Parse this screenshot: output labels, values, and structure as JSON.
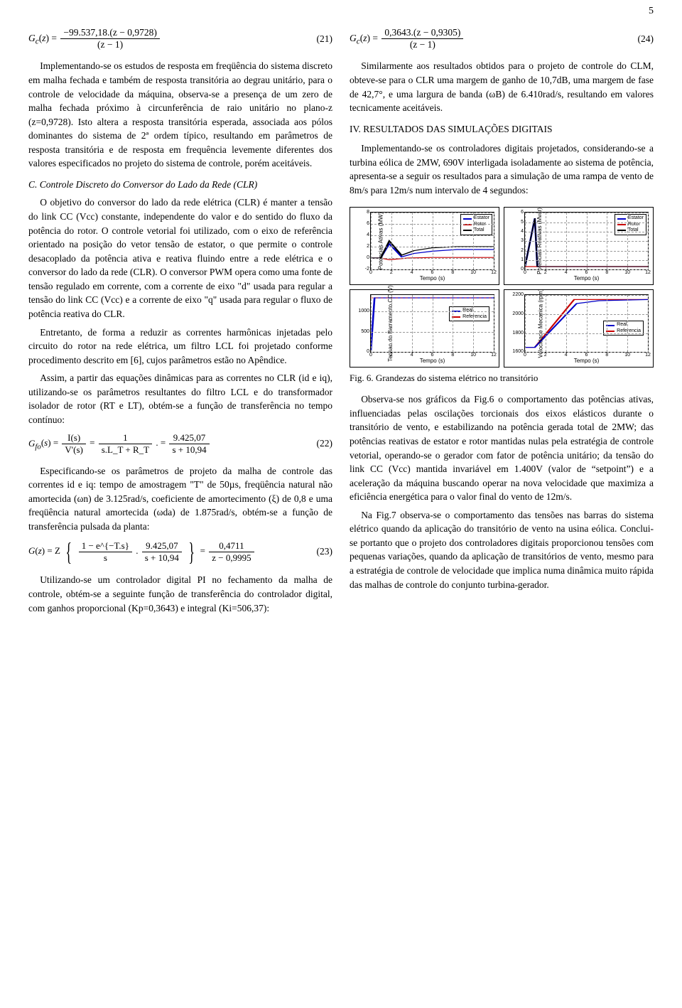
{
  "page_number": "5",
  "left": {
    "eq21": {
      "lhs": "G_c(z) =",
      "num": "−99.537,18.(z − 0,9728)",
      "den": "(z − 1)",
      "num_label": "(21)"
    },
    "p1": "Implementando-se os estudos de resposta em freqüência do sistema discreto em malha fechada e também de resposta transitória ao degrau unitário, para o controle de velocidade da máquina, observa-se a presença de um zero de malha fechada próximo à circunferência de raio unitário no plano-z (z=0,9728). Isto altera a resposta transitória esperada, associada aos pólos dominantes do sistema de 2ª ordem típico, resultando em parâmetros de resposta transitória e de resposta em frequência levemente diferentes dos valores especificados no projeto do sistema de controle, porém aceitáveis.",
    "sub_c": "C.  Controle Discreto do Conversor do Lado da Rede (CLR)",
    "p2": "O objetivo do conversor do lado da rede elétrica (CLR) é manter a tensão do link CC (Vcc) constante, independente do valor e do sentido do fluxo da potência do rotor. O controle vetorial foi utilizado, com o eixo de referência orientado na posição do vetor tensão de estator, o que permite o controle desacoplado da potência ativa e reativa fluindo entre a rede elétrica e o conversor do lado da rede (CLR). O conversor PWM opera como uma fonte de tensão regulado em corrente, com a corrente de eixo \"d\" usada para regular a tensão do link CC (Vcc) e a corrente de eixo \"q\" usada para regular o fluxo de potência reativa do CLR.",
    "p3": "Entretanto, de forma a reduzir as correntes harmônicas injetadas pelo circuito do rotor na rede elétrica, um filtro LCL foi projetado conforme procedimento descrito em [6], cujos parâmetros estão no Apêndice.",
    "p4": "Assim, a partir das equações dinâmicas para as correntes no CLR (id e iq), utilizando-se os parâmetros resultantes do filtro LCL e do transformador isolador de rotor (RT e LT), obtém-se a função de transferência no tempo contínuo:",
    "eq22": {
      "lhs": "G_fo(s) =",
      "f1_num": "I(s)",
      "f1_den": "V'(s)",
      "f2_num": "1",
      "f2_den": "s.L_T + R_T",
      "f3_num": "9.425,07",
      "f3_den": "s + 10,94",
      "num_label": "(22)"
    },
    "p5": "Especificando-se os parâmetros de projeto da malha de controle das correntes id e iq: tempo de amostragem \"T\" de 50µs, freqüência natural não amortecida (ωn) de 3.125rad/s, coeficiente de amortecimento (ξ) de 0,8 e uma freqüência natural amortecida (ωda) de 1.875rad/s, obtém-se a função de transferência pulsada da planta:",
    "eq23": {
      "lhs": "G(z) = Z",
      "f1_num": "1 − e^{−T.s}",
      "f1_den": "s",
      "f2_num": "9.425,07",
      "f2_den": "s + 10,94",
      "rhs_num": "0,4711",
      "rhs_den": "z − 0,9995",
      "num_label": "(23)"
    },
    "p6": "Utilizando-se um controlador digital PI no fechamento da malha de controle, obtém-se a seguinte função de transferência do controlador digital, com ganhos proporcional (Kp=0,3643) e integral (Ki=506,37):"
  },
  "right": {
    "eq24": {
      "lhs": "G_c(z) =",
      "num": "0,3643.(z − 0,9305)",
      "den": "(z − 1)",
      "num_label": "(24)"
    },
    "p1": "Similarmente aos resultados obtidos para o projeto de controle do CLM, obteve-se para o CLR uma margem de ganho de 10,7dB, uma margem de fase de 42,7°, e uma largura de banda (ωB) de 6.410rad/s, resultando em valores tecnicamente aceitáveis.",
    "sec4": "IV.  RESULTADOS DAS SIMULAÇÕES DIGITAIS",
    "p2": "Implementando-se os controladores digitais projetados, considerando-se a turbina eólica de 2MW, 690V interligada isoladamente ao sistema de potência, apresenta-se a seguir os resultados para a simulação de uma rampa de vento de 8m/s para 12m/s num intervalo de 4 segundos:",
    "chart1": {
      "ylabel": "Potencias Ativas (MW)",
      "yticks": [
        "-2",
        "0",
        "2",
        "4",
        "6",
        "8"
      ],
      "ylim": [
        -2,
        8
      ],
      "legend": [
        {
          "label": "Estator",
          "color": "#0000c8"
        },
        {
          "label": "Rotor",
          "color": "#c80000"
        },
        {
          "label": "Total",
          "color": "#000000"
        }
      ]
    },
    "chart2": {
      "ylabel": "Potencias Reativas (Mvar)",
      "yticks": [
        "0",
        "1",
        "2",
        "3",
        "4",
        "5",
        "6"
      ],
      "ylim": [
        0,
        6
      ],
      "legend": [
        {
          "label": "Estator",
          "color": "#0000c8"
        },
        {
          "label": "Rotor",
          "color": "#c80000"
        },
        {
          "label": "Total",
          "color": "#000000"
        }
      ]
    },
    "chart3": {
      "ylabel": "Tensao do Barramento CC (V)",
      "yticks": [
        "0",
        "500",
        "1000"
      ],
      "ylim": [
        0,
        1400
      ],
      "legend": [
        {
          "label": "Real",
          "color": "#0000c8"
        },
        {
          "label": "Referencia",
          "color": "#c80000"
        }
      ]
    },
    "chart4": {
      "ylabel": "Velocidade Mecanica (rpm)",
      "yticks": [
        "1600",
        "1800",
        "2000",
        "2200"
      ],
      "ylim": [
        1600,
        2200
      ],
      "legend": [
        {
          "label": "Real",
          "color": "#0000c8"
        },
        {
          "label": "Referencia",
          "color": "#c80000"
        }
      ]
    },
    "xlabel": "Tempo (s)",
    "xticks": [
      "0",
      "2",
      "4",
      "6",
      "8",
      "10",
      "12"
    ],
    "fig6": "Fig. 6.  Grandezas do sistema elétrico no transitório",
    "p3": "Observa-se nos gráficos da Fig.6 o comportamento das potências ativas, influenciadas pelas oscilações torcionais dos eixos elásticos durante o transitório de vento, e estabilizando na potência gerada total de 2MW; das potências reativas de estator e rotor mantidas nulas pela estratégia de controle vetorial, operando-se o gerador com fator de potência unitário; da tensão do link CC (Vcc) mantida invariável em 1.400V (valor de “setpoint”) e a aceleração da máquina buscando operar na nova velocidade que maximiza a eficiência energética para o valor final do vento de 12m/s.",
    "p4": "Na Fig.7 observa-se o comportamento das tensões nas barras do sistema elétrico quando da aplicação do transitório de vento na usina eólica. Conclui-se portanto que o projeto dos controladores digitais proporcionou tensões com pequenas variações, quando da aplicação de transitórios de vento, mesmo para a estratégia de controle de velocidade que implica numa dinâmica muito rápida das malhas de controle do conjunto turbina-gerador."
  },
  "colors": {
    "text": "#000000",
    "grid": "#bfbfbf",
    "background": "#ffffff"
  }
}
